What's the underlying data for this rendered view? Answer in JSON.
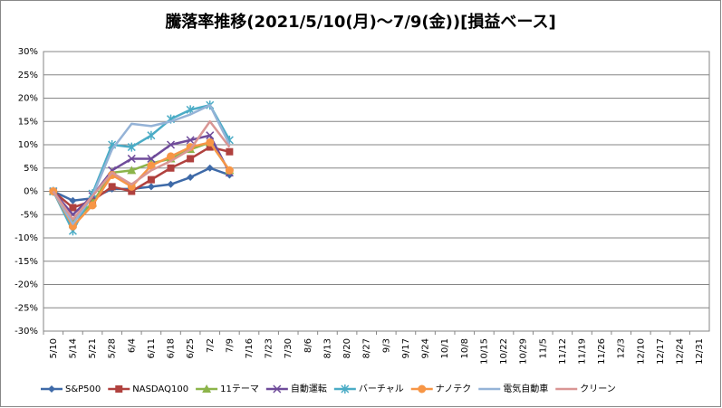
{
  "chart_data": {
    "type": "line",
    "title": "騰落率推移(2021/5/10(月)～7/9(金))[損益ベース]",
    "categories": [
      "5/10",
      "5/14",
      "5/21",
      "5/28",
      "6/4",
      "6/11",
      "6/18",
      "6/25",
      "7/2",
      "7/9",
      "7/16",
      "7/23",
      "7/30",
      "8/6",
      "8/13",
      "8/20",
      "8/27",
      "9/3",
      "9/17",
      "9/24",
      "10/1",
      "10/8",
      "10/15",
      "10/22",
      "10/29",
      "11/5",
      "11/12",
      "11/19",
      "11/26",
      "12/3",
      "12/10",
      "12/17",
      "12/24",
      "12/31"
    ],
    "ylim": [
      -30,
      30
    ],
    "yticks": [
      {
        "value": -30,
        "label": "-30%"
      },
      {
        "value": -25,
        "label": "-25%"
      },
      {
        "value": -20,
        "label": "-20%"
      },
      {
        "value": -15,
        "label": "-15%"
      },
      {
        "value": -10,
        "label": "-10%"
      },
      {
        "value": -5,
        "label": "-5%"
      },
      {
        "value": 0,
        "label": "0%"
      },
      {
        "value": 5,
        "label": "5%"
      },
      {
        "value": 10,
        "label": "10%"
      },
      {
        "value": 15,
        "label": "15%"
      },
      {
        "value": 20,
        "label": "20%"
      },
      {
        "value": 25,
        "label": "25%"
      },
      {
        "value": 30,
        "label": "30%"
      }
    ],
    "grid": true,
    "legend": "bottom",
    "series": [
      {
        "name": "S&P500",
        "color": "#3e6aa8",
        "marker": "diamond",
        "values": [
          0,
          -2,
          -1.5,
          0.5,
          0.5,
          1,
          1.5,
          3,
          5,
          3.5,
          null,
          null,
          null,
          null,
          null,
          null,
          null,
          null,
          null,
          null,
          null,
          null,
          null,
          null,
          null,
          null,
          null,
          null,
          null,
          null,
          null,
          null,
          null,
          null
        ]
      },
      {
        "name": "NASDAQ100",
        "color": "#b0413e",
        "marker": "square",
        "values": [
          0,
          -3.5,
          -2,
          1,
          0,
          2.5,
          5,
          7,
          9.5,
          8.5,
          null,
          null,
          null,
          null,
          null,
          null,
          null,
          null,
          null,
          null,
          null,
          null,
          null,
          null,
          null,
          null,
          null,
          null,
          null,
          null,
          null,
          null,
          null,
          null
        ]
      },
      {
        "name": "11テーマ",
        "color": "#8cb44a",
        "marker": "triangle",
        "values": [
          0,
          -6.5,
          -2.5,
          4,
          4.5,
          6,
          7,
          9,
          10.5,
          4.5,
          null,
          null,
          null,
          null,
          null,
          null,
          null,
          null,
          null,
          null,
          null,
          null,
          null,
          null,
          null,
          null,
          null,
          null,
          null,
          null,
          null,
          null,
          null,
          null
        ]
      },
      {
        "name": "自動運転",
        "color": "#6f4b9a",
        "marker": "x",
        "values": [
          0,
          -5,
          -1,
          4.5,
          7,
          7,
          10,
          11,
          12,
          4,
          null,
          null,
          null,
          null,
          null,
          null,
          null,
          null,
          null,
          null,
          null,
          null,
          null,
          null,
          null,
          null,
          null,
          null,
          null,
          null,
          null,
          null,
          null,
          null
        ]
      },
      {
        "name": "バーチャル",
        "color": "#4bacc6",
        "marker": "star",
        "values": [
          0,
          -8.5,
          -0.5,
          10,
          9.5,
          12,
          15.5,
          17.5,
          18.5,
          11,
          null,
          null,
          null,
          null,
          null,
          null,
          null,
          null,
          null,
          null,
          null,
          null,
          null,
          null,
          null,
          null,
          null,
          null,
          null,
          null,
          null,
          null,
          null,
          null
        ]
      },
      {
        "name": "ナノテク",
        "color": "#f79646",
        "marker": "circle",
        "values": [
          0,
          -7.5,
          -3,
          3.5,
          1,
          5.5,
          7.5,
          9.5,
          10.5,
          4.5,
          null,
          null,
          null,
          null,
          null,
          null,
          null,
          null,
          null,
          null,
          null,
          null,
          null,
          null,
          null,
          null,
          null,
          null,
          null,
          null,
          null,
          null,
          null,
          null
        ]
      },
      {
        "name": "電気自動車",
        "color": "#95b3d7",
        "marker": "none",
        "values": [
          0,
          -7,
          -1,
          9,
          14.5,
          14,
          15,
          16.5,
          18.5,
          10,
          null,
          null,
          null,
          null,
          null,
          null,
          null,
          null,
          null,
          null,
          null,
          null,
          null,
          null,
          null,
          null,
          null,
          null,
          null,
          null,
          null,
          null,
          null,
          null
        ]
      },
      {
        "name": "クリーン",
        "color": "#d99694",
        "marker": "none",
        "values": [
          0,
          -6,
          -1,
          4,
          1.5,
          4.5,
          6.5,
          9,
          15,
          9.5,
          null,
          null,
          null,
          null,
          null,
          null,
          null,
          null,
          null,
          null,
          null,
          null,
          null,
          null,
          null,
          null,
          null,
          null,
          null,
          null,
          null,
          null,
          null,
          null
        ]
      }
    ]
  }
}
